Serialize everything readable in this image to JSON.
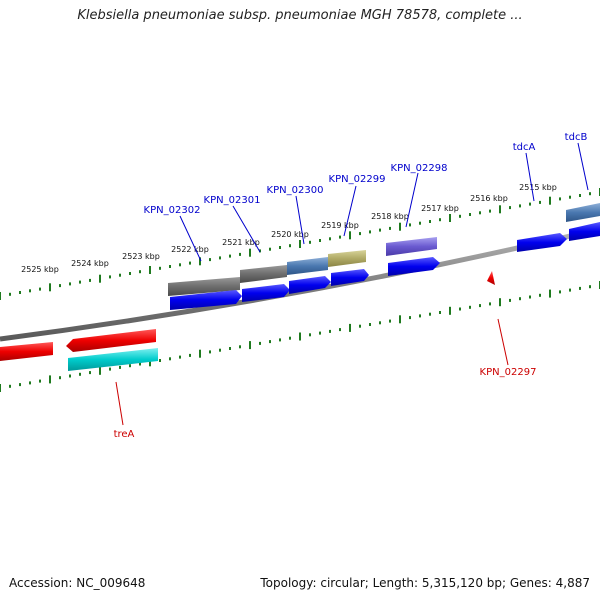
{
  "title": "Klebsiella pneumoniae subsp. pneumoniae MGH 78578, complete ...",
  "footer": {
    "accession": "Accession: NC_009648",
    "summary": "Topology: circular; Length: 5,315,120 bp; Genes: 4,887"
  },
  "colors": {
    "backbone": "#8a8a8a",
    "tick": "#1f7a1f",
    "forward_label": "#0000cc",
    "reverse_label": "#cc0000"
  },
  "ticks": [
    {
      "label": "2525 kbp"
    },
    {
      "label": "2524 kbp"
    },
    {
      "label": "2523 kbp"
    },
    {
      "label": "2522 kbp"
    },
    {
      "label": "2521 kbp"
    },
    {
      "label": "2520 kbp"
    },
    {
      "label": "2519 kbp"
    },
    {
      "label": "2518 kbp"
    },
    {
      "label": "2517 kbp"
    },
    {
      "label": "2516 kbp"
    },
    {
      "label": "2515 kbp"
    }
  ],
  "labels": [
    {
      "text": "KPN_02302",
      "strand": "forward"
    },
    {
      "text": "KPN_02301",
      "strand": "forward"
    },
    {
      "text": "KPN_02300",
      "strand": "forward"
    },
    {
      "text": "KPN_02299",
      "strand": "forward"
    },
    {
      "text": "KPN_02298",
      "strand": "forward"
    },
    {
      "text": "tdcA",
      "strand": "forward"
    },
    {
      "text": "tdcB",
      "strand": "forward"
    },
    {
      "text": "treA",
      "strand": "reverse"
    },
    {
      "text": "KPN_02297",
      "strand": "reverse"
    }
  ]
}
